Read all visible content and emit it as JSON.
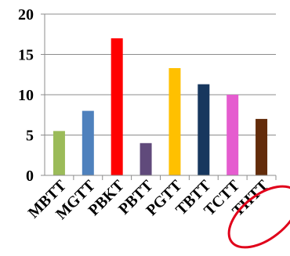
{
  "chart_data": {
    "type": "bar",
    "categories": [
      "MBTT",
      "MGTT",
      "PBKT",
      "PBTT",
      "PGTT",
      "TBTT",
      "TCTT",
      "THTT"
    ],
    "values": [
      5.5,
      8,
      17,
      4,
      13.3,
      11.3,
      10,
      7
    ],
    "colors": [
      "#9bbb59",
      "#4f81bd",
      "#ff0000",
      "#604a7b",
      "#ffc000",
      "#17375e",
      "#e55ccf",
      "#632c0b"
    ],
    "ylim": [
      0,
      20
    ],
    "yticks": [
      0,
      5,
      10,
      15,
      20
    ],
    "grid": true,
    "gridColor": "#8c8c8c",
    "highlight": {
      "category": "THTT",
      "shape": "ellipse",
      "color": "#e0001a"
    }
  }
}
